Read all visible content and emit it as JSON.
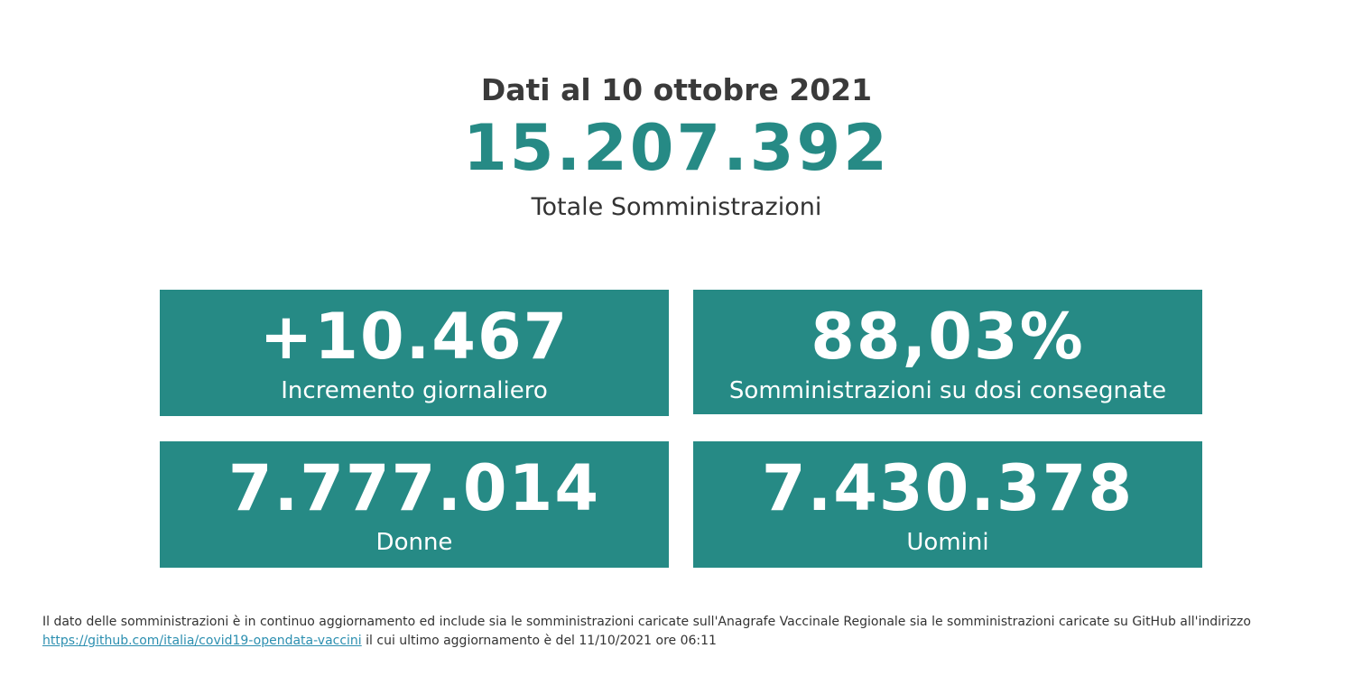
{
  "header": {
    "date_line": "Dati al 10 ottobre 2021",
    "total_value": "15.207.392",
    "total_label": "Totale Somministrazioni"
  },
  "cards": [
    {
      "value": "+10.467",
      "label": "Incremento giornaliero"
    },
    {
      "value": "88,03%",
      "label": "Somministrazioni su dosi consegnate"
    },
    {
      "value": "7.777.014",
      "label": "Donne"
    },
    {
      "value": "7.430.378",
      "label": "Uomini"
    }
  ],
  "footer": {
    "text_before": "Il dato delle somministrazioni è in continuo aggiornamento ed include sia le somministrazioni caricate sull'Anagrafe Vaccinale Regionale sia le somministrazioni caricate su GitHub all'indirizzo",
    "link_text": "https://github.com/italia/covid19-opendata-vaccini",
    "text_after": "il cui ultimo aggiornamento è del 11/10/2021 ore 06:11"
  },
  "colors": {
    "accent": "#268a85",
    "link": "#2c8fb0"
  }
}
